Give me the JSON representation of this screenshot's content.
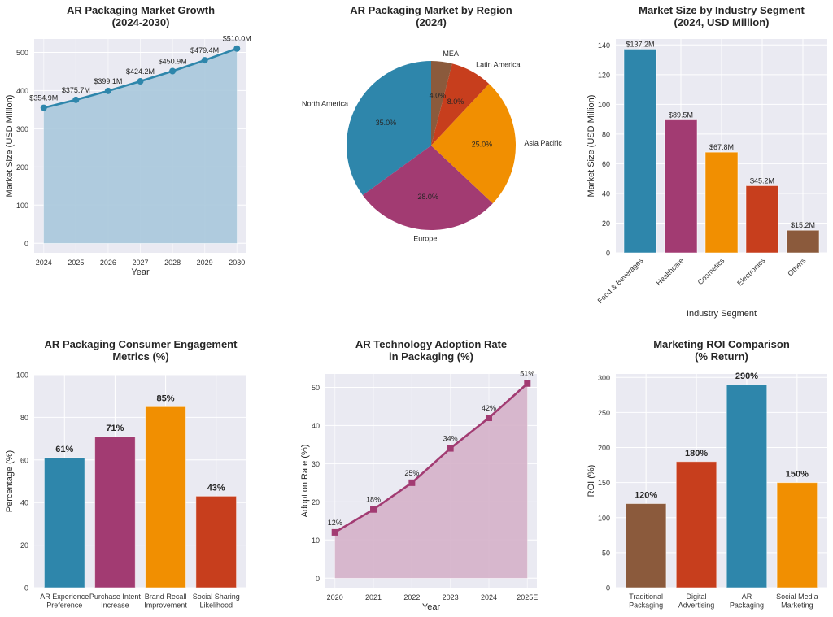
{
  "figure": {
    "background": "#ffffff",
    "plot_background": "#eaeaf2",
    "grid_color": "#ffffff",
    "text_color": "#262626",
    "tick_color": "#333333"
  },
  "chart_data": [
    {
      "id": "market-growth",
      "type": "area",
      "title": "AR Packaging Market Growth\n(2024-2030)",
      "xlabel": "Year",
      "ylabel": "Market Size (USD Million)",
      "categories": [
        "2024",
        "2025",
        "2026",
        "2027",
        "2028",
        "2029",
        "2030"
      ],
      "values": [
        354.9,
        375.7,
        399.1,
        424.2,
        450.9,
        479.4,
        510.0
      ],
      "data_labels": [
        "$354.9M",
        "$375.7M",
        "$399.1M",
        "$424.2M",
        "$450.9M",
        "$479.4M",
        "$510.0M"
      ],
      "ylim": [
        -25,
        535
      ],
      "yticks": [
        0,
        100,
        200,
        300,
        400,
        500
      ],
      "marker": "circle",
      "color": "#2e86ab",
      "fill_color": "#a9c8dc",
      "grid": true
    },
    {
      "id": "market-by-region",
      "type": "pie",
      "title": "AR Packaging Market by Region\n(2024)",
      "labels": [
        "North America",
        "Europe",
        "Asia Pacific",
        "Latin America",
        "MEA"
      ],
      "values": [
        35.0,
        28.0,
        25.0,
        8.0,
        4.0
      ],
      "pct_labels": [
        "35.0%",
        "28.0%",
        "25.0%",
        "8.0%",
        "4.0%"
      ],
      "colors": [
        "#2e86ab",
        "#a23b72",
        "#f18f01",
        "#c73e1d",
        "#8b5a3c"
      ],
      "start_angle_deg": 90,
      "direction": "counterclockwise"
    },
    {
      "id": "industry-segment",
      "type": "bar",
      "title": "Market Size by Industry Segment\n(2024, USD Million)",
      "xlabel": "Industry Segment",
      "ylabel": "Market Size (USD Million)",
      "categories": [
        "Food & Beverages",
        "Healthcare",
        "Cosmetics",
        "Electronics",
        "Others"
      ],
      "values": [
        137.2,
        89.5,
        67.8,
        45.2,
        15.2
      ],
      "data_labels": [
        "$137.2M",
        "$89.5M",
        "$67.8M",
        "$45.2M",
        "$15.2M"
      ],
      "colors": [
        "#2e86ab",
        "#a23b72",
        "#f18f01",
        "#c73e1d",
        "#8b5a3c"
      ],
      "ylim": [
        0,
        144
      ],
      "yticks": [
        0,
        20,
        40,
        60,
        80,
        100,
        120,
        140
      ],
      "tick_rotation_deg": 45,
      "grid": true
    },
    {
      "id": "consumer-engagement",
      "type": "bar",
      "title": "AR Packaging Consumer Engagement\nMetrics (%)",
      "xlabel": "",
      "ylabel": "Percentage (%)",
      "categories": [
        "AR Experience\nPreference",
        "Purchase Intent\nIncrease",
        "Brand Recall\nImprovement",
        "Social Sharing\nLikelihood"
      ],
      "values": [
        61,
        71,
        85,
        43
      ],
      "data_labels": [
        "61%",
        "71%",
        "85%",
        "43%"
      ],
      "colors": [
        "#2e86ab",
        "#a23b72",
        "#f18f01",
        "#c73e1d"
      ],
      "ylim": [
        0,
        100
      ],
      "yticks": [
        0,
        20,
        40,
        60,
        80,
        100
      ],
      "grid": true
    },
    {
      "id": "adoption-rate",
      "type": "area",
      "title": "AR Technology Adoption Rate\nin Packaging (%)",
      "xlabel": "Year",
      "ylabel": "Adoption Rate (%)",
      "categories": [
        "2020",
        "2021",
        "2022",
        "2023",
        "2024",
        "2025E"
      ],
      "values": [
        12,
        18,
        25,
        34,
        42,
        51
      ],
      "data_labels": [
        "12%",
        "18%",
        "25%",
        "34%",
        "42%",
        "51%"
      ],
      "ylim": [
        -2.5,
        53.5
      ],
      "yticks": [
        0,
        10,
        20,
        30,
        40,
        50
      ],
      "marker": "square",
      "color": "#a23b72",
      "fill_color": "#d5b1c9",
      "grid": true
    },
    {
      "id": "marketing-roi",
      "type": "bar",
      "title": "Marketing ROI Comparison\n(% Return)",
      "xlabel": "",
      "ylabel": "ROI (%)",
      "categories": [
        "Traditional\nPackaging",
        "Digital\nAdvertising",
        "AR\nPackaging",
        "Social Media\nMarketing"
      ],
      "values": [
        120,
        180,
        290,
        150
      ],
      "data_labels": [
        "120%",
        "180%",
        "290%",
        "150%"
      ],
      "colors": [
        "#8b5a3c",
        "#c73e1d",
        "#2e86ab",
        "#f18f01"
      ],
      "ylim": [
        0,
        305
      ],
      "yticks": [
        0,
        50,
        100,
        150,
        200,
        250,
        300
      ],
      "grid": true
    }
  ]
}
